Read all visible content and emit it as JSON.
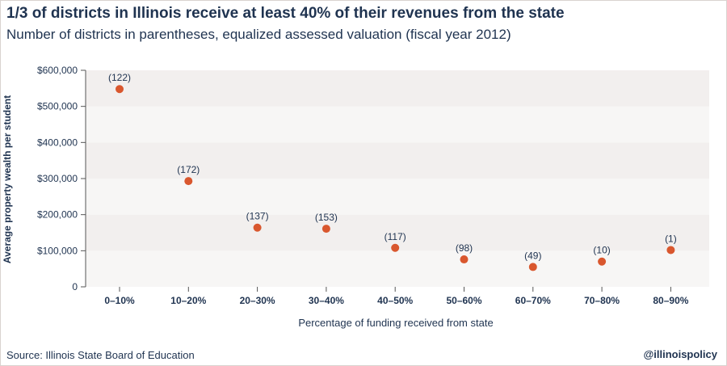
{
  "header": {
    "title": "1/3 of districts in Illinois receive at least 40% of their revenues from the state",
    "subtitle": "Number of districts in parentheses, equalized assessed valuation (fiscal year 2012)"
  },
  "footer": {
    "source": "Source: Illinois State Board of Education",
    "handle": "@illinoispolicy"
  },
  "colors": {
    "point": "#d9572e",
    "band_light": "#f2efee",
    "band_dark": "#f7f6f5",
    "text": "#1f3350"
  },
  "chart_data": {
    "type": "scatter",
    "title": "1/3 of districts in Illinois receive at least 40% of their revenues from the state",
    "subtitle": "Number of districts in parentheses, equalized assessed valuation (fiscal year 2012)",
    "xlabel": "Percentage of funding received from state",
    "ylabel": "Average property wealth per student",
    "categories": [
      "0–10%",
      "10–20%",
      "20–30%",
      "30–40%",
      "40–50%",
      "50–60%",
      "60–70%",
      "70–80%",
      "80–90%"
    ],
    "values": [
      548000,
      293000,
      164000,
      161000,
      108000,
      76000,
      55000,
      70000,
      102000
    ],
    "labels": [
      "(122)",
      "(172)",
      "(137)",
      "(153)",
      "(117)",
      "(98)",
      "(49)",
      "(10)",
      "(1)"
    ],
    "ylim": [
      0,
      600000
    ],
    "yticks": [
      0,
      100000,
      200000,
      300000,
      400000,
      500000,
      600000
    ],
    "ytick_labels": [
      "0",
      "$100,000",
      "$200,000",
      "$300,000",
      "$400,000",
      "$500,000",
      "$600,000"
    ],
    "grid": true,
    "legend": "none"
  }
}
